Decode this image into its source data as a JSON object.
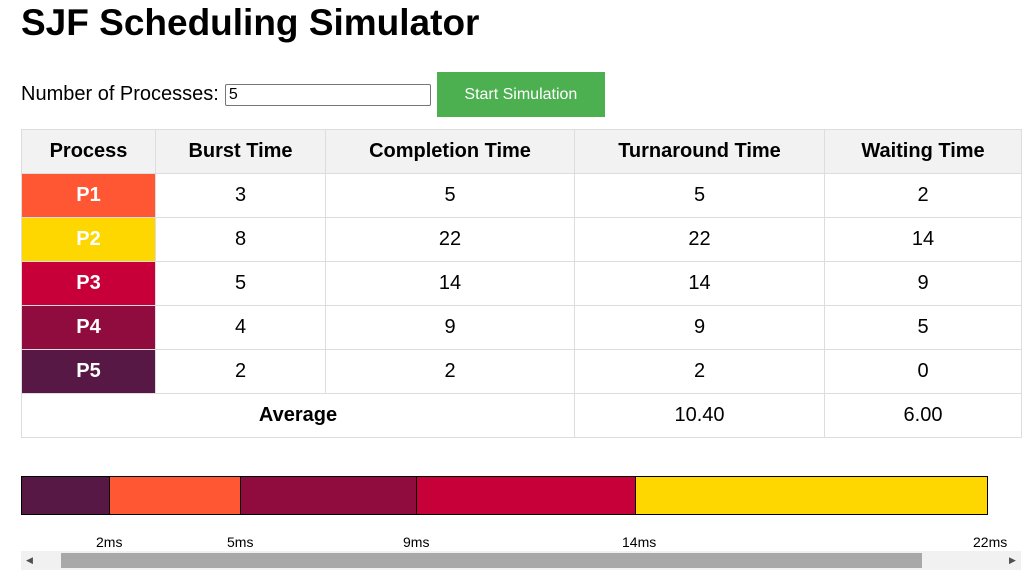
{
  "page": {
    "title": "SJF Scheduling Simulator"
  },
  "controls": {
    "count_label": "Number of Processes:",
    "count_value": "5",
    "start_button": "Start Simulation"
  },
  "table": {
    "headers": [
      "Process",
      "Burst Time",
      "Completion Time",
      "Turnaround Time",
      "Waiting Time"
    ],
    "rows": [
      {
        "process": "P1",
        "burst": "3",
        "completion": "5",
        "turnaround": "5",
        "waiting": "2",
        "color": "#ff5733"
      },
      {
        "process": "P2",
        "burst": "8",
        "completion": "22",
        "turnaround": "22",
        "waiting": "14",
        "color": "#ffd700"
      },
      {
        "process": "P3",
        "burst": "5",
        "completion": "14",
        "turnaround": "14",
        "waiting": "9",
        "color": "#c70039"
      },
      {
        "process": "P4",
        "burst": "4",
        "completion": "9",
        "turnaround": "9",
        "waiting": "5",
        "color": "#900c3f"
      },
      {
        "process": "P5",
        "burst": "2",
        "completion": "2",
        "turnaround": "2",
        "waiting": "0",
        "color": "#581845"
      }
    ],
    "average": {
      "label": "Average",
      "turnaround": "10.40",
      "waiting": "6.00"
    }
  },
  "gantt": {
    "segments": [
      {
        "process": "P5",
        "start": 0,
        "end": 2,
        "color": "#581845"
      },
      {
        "process": "P1",
        "start": 2,
        "end": 5,
        "color": "#ff5733"
      },
      {
        "process": "P4",
        "start": 5,
        "end": 9,
        "color": "#900c3f"
      },
      {
        "process": "P3",
        "start": 9,
        "end": 14,
        "color": "#c70039"
      },
      {
        "process": "P2",
        "start": 14,
        "end": 22,
        "color": "#ffd700"
      }
    ],
    "ticks": [
      "2ms",
      "5ms",
      "9ms",
      "14ms",
      "22ms"
    ]
  }
}
